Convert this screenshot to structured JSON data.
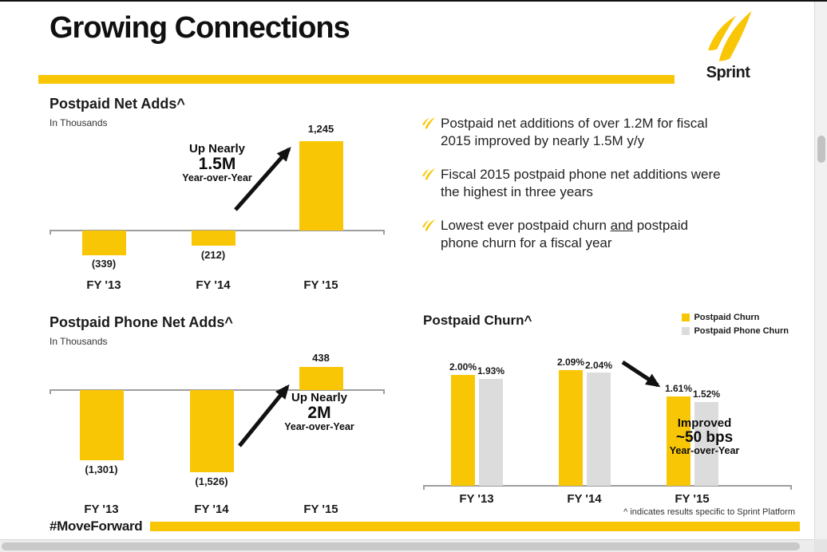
{
  "slide": {
    "title": "Growing Connections",
    "brand": "Sprint",
    "hashtag": "#MoveForward",
    "footnote": "^ indicates results specific to Sprint Platform"
  },
  "colors": {
    "accent": "#F9C606",
    "bar_gray": "#DCDCDC",
    "text": "#1A1A1A"
  },
  "bullets": {
    "items": [
      {
        "text": "Postpaid net additions of over 1.2M for fiscal 2015 improved by nearly 1.5M y/y"
      },
      {
        "text": "Fiscal 2015 postpaid phone net additions were the highest in three years"
      },
      {
        "before": "Lowest ever postpaid churn ",
        "underline": "and",
        "after": " postpaid phone churn for a fiscal year"
      }
    ]
  },
  "chart_data": [
    {
      "type": "bar",
      "title": "Postpaid Net Adds^",
      "subtitle": "In Thousands",
      "categories": [
        "FY '13",
        "FY '14",
        "FY '15"
      ],
      "values": [
        -339,
        -212,
        1245
      ],
      "value_labels": [
        "(339)",
        "(212)",
        "1,245"
      ],
      "ylim": [
        -600,
        1400
      ],
      "grid": false,
      "annotation": {
        "lines": [
          "Up Nearly",
          "1.5M",
          "Year-over-Year"
        ]
      }
    },
    {
      "type": "bar",
      "title": "Postpaid Phone Net Adds^",
      "subtitle": "In Thousands",
      "categories": [
        "FY '13",
        "FY '14",
        "FY '15"
      ],
      "values": [
        -1301,
        -1526,
        438
      ],
      "value_labels": [
        "(1,301)",
        "(1,526)",
        "438"
      ],
      "ylim": [
        -2000,
        750
      ],
      "grid": false,
      "annotation": {
        "lines": [
          "Up Nearly",
          "2M",
          "Year-over-Year"
        ]
      }
    },
    {
      "type": "bar",
      "title": "Postpaid Churn^",
      "categories": [
        "FY '13",
        "FY '14",
        "FY '15"
      ],
      "ylim": [
        0,
        2.45
      ],
      "grid": false,
      "legend_position": "top-right",
      "series": [
        {
          "name": "Postpaid Churn",
          "color": "#F9C606",
          "values": [
            2.0,
            2.09,
            1.61
          ],
          "value_labels": [
            "2.00%",
            "2.09%",
            "1.61%"
          ]
        },
        {
          "name": "Postpaid Phone Churn",
          "color": "#DCDCDC",
          "values": [
            1.93,
            2.04,
            1.52
          ],
          "value_labels": [
            "1.93%",
            "2.04%",
            "1.52%"
          ]
        }
      ],
      "annotation": {
        "lines": [
          "Improved",
          "~50 bps",
          "Year-over-Year"
        ]
      }
    }
  ]
}
